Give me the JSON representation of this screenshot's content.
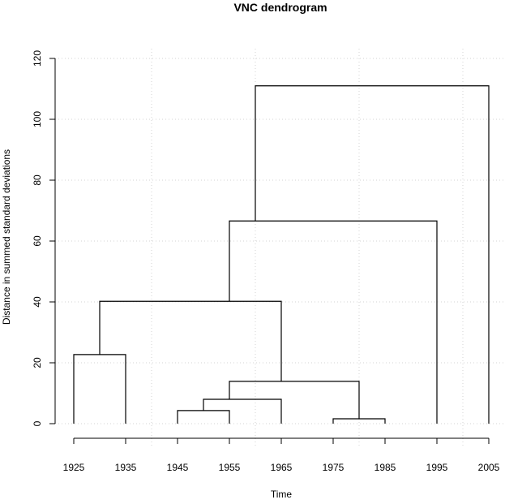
{
  "chart_data": {
    "type": "dendrogram",
    "title": "VNC dendrogram",
    "xlabel": "Time",
    "ylabel": "Distance in summed standard deviations",
    "xticks": [
      1925,
      1935,
      1945,
      1955,
      1965,
      1975,
      1985,
      1995,
      2005
    ],
    "yticks": [
      0,
      20,
      40,
      60,
      80,
      100,
      120
    ],
    "xlim": [
      1925,
      2005
    ],
    "ylim": [
      0,
      120
    ],
    "grid": true,
    "grid_x": [
      1940,
      1960,
      1980,
      2000
    ],
    "leaves": [
      1925,
      1935,
      1945,
      1955,
      1965,
      1975,
      1985,
      1995,
      2005
    ],
    "merges": [
      {
        "x1": 1975,
        "x2": 1985,
        "height": 1.6,
        "left_from": 0,
        "right_from": 0
      },
      {
        "x1": 1945,
        "x2": 1955,
        "height": 4.3,
        "left_from": 0,
        "right_from": 0
      },
      {
        "x1": 1950,
        "x2": 1965,
        "height": 8.0,
        "left_from": 4.3,
        "right_from": 0
      },
      {
        "x1": 1955,
        "x2": 1980,
        "height": 13.9,
        "left_from": 8.0,
        "right_from": 1.6
      },
      {
        "x1": 1925,
        "x2": 1935,
        "height": 22.7,
        "left_from": 0,
        "right_from": 0
      },
      {
        "x1": 1930,
        "x2": 1965,
        "height": 40.2,
        "left_from": 22.7,
        "right_from": 13.9
      },
      {
        "x1": 1955,
        "x2": 1995,
        "height": 66.6,
        "left_from": 40.2,
        "right_from": 0
      },
      {
        "x1": 1960,
        "x2": 2005,
        "height": 111.0,
        "left_from": 66.6,
        "right_from": 0
      }
    ]
  }
}
